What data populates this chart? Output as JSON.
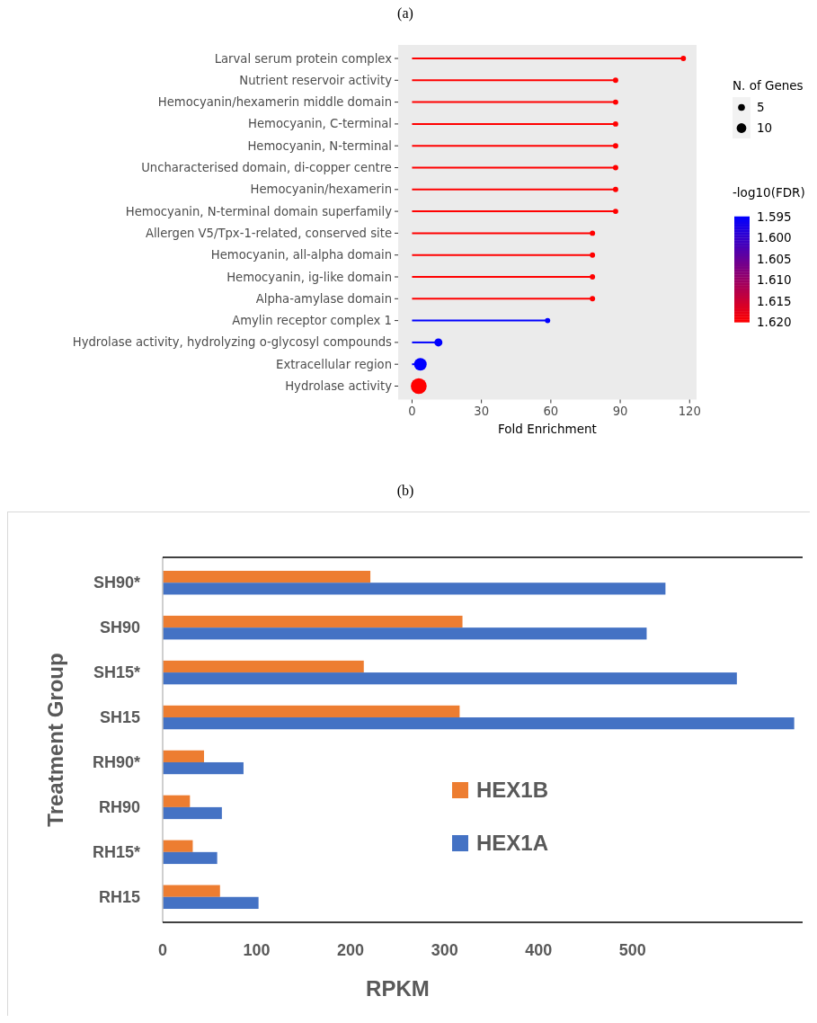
{
  "chart_data": [
    {
      "type": "lollipop",
      "title": "(a)",
      "orientation": "horizontal",
      "xlabel": "Fold Enrichment",
      "categories": [
        "Larval serum protein complex",
        "Nutrient reservoir activity",
        "Hemocyanin/hexamerin middle domain",
        "Hemocyanin, C-terminal",
        "Hemocyanin, N-terminal",
        "Uncharacterised domain, di-copper centre",
        "Hemocyanin/hexamerin",
        "Hemocyanin, N-terminal domain superfamily",
        "Allergen V5/Tpx-1-related, conserved site",
        "Hemocyanin, all-alpha domain",
        "Hemocyanin, ig-like domain",
        "Alpha-amylase domain",
        "Amylin receptor complex 1",
        "Hydrolase activity, hydrolyzing o-glycosyl compounds",
        "Extracellular region",
        "Hydrolase activity"
      ],
      "values": [
        117.3,
        88,
        88,
        88,
        88,
        88,
        88,
        88,
        78,
        78,
        78,
        78,
        58.6,
        11.4,
        3.6,
        2.9
      ],
      "sizes": [
        3,
        3,
        3,
        3,
        3,
        3,
        3,
        3,
        3,
        3,
        3,
        3,
        3,
        7,
        17,
        27
      ],
      "cvalues": [
        1.62,
        1.62,
        1.62,
        1.62,
        1.62,
        1.62,
        1.62,
        1.62,
        1.62,
        1.62,
        1.62,
        1.62,
        1.595,
        1.595,
        1.595,
        1.62
      ],
      "colors": [
        "#ff0000",
        "#ff0000",
        "#ff0000",
        "#ff0000",
        "#ff0000",
        "#ff0000",
        "#ff0000",
        "#ff0000",
        "#ff0000",
        "#ff0000",
        "#ff0000",
        "#ff0000",
        "#0000ff",
        "#0000ff",
        "#0000ff",
        "#ff0000"
      ],
      "legend_title": "N. of Genes",
      "size_legend": [
        5,
        10
      ],
      "clabel": "-log10(FDR)",
      "clim": [
        1.595,
        1.62
      ],
      "cticks": [
        1.595,
        {
          "value": 1.6,
          "label": "1.600"
        },
        1.605,
        {
          "value": 1.61,
          "label": "1.610"
        },
        1.615,
        {
          "value": 1.62,
          "label": "1.620"
        }
      ],
      "xlim": [
        -6,
        123
      ],
      "xticks": [
        0,
        30,
        60,
        90,
        120
      ]
    },
    {
      "type": "bar",
      "title": "(b)",
      "orientation": "horizontal",
      "xlabel": "RPKM",
      "ylabel": "Treatment Group",
      "categories": [
        "SH90*",
        "SH90",
        "SH15*",
        "SH15",
        "RH90*",
        "RH90",
        "RH15*",
        "RH15"
      ],
      "series": [
        {
          "name": "HEX1B",
          "color": "#ed7d31",
          "values": [
            221,
            319,
            214,
            316,
            44,
            29,
            32,
            61
          ]
        },
        {
          "name": "HEX1A",
          "color": "#4472c4",
          "values": [
            535,
            515,
            611,
            672,
            86,
            63,
            58,
            102
          ]
        }
      ],
      "xlim": [
        0,
        680
      ],
      "xticks": [
        0,
        100,
        200,
        300,
        400,
        500
      ],
      "legend": "center"
    }
  ]
}
